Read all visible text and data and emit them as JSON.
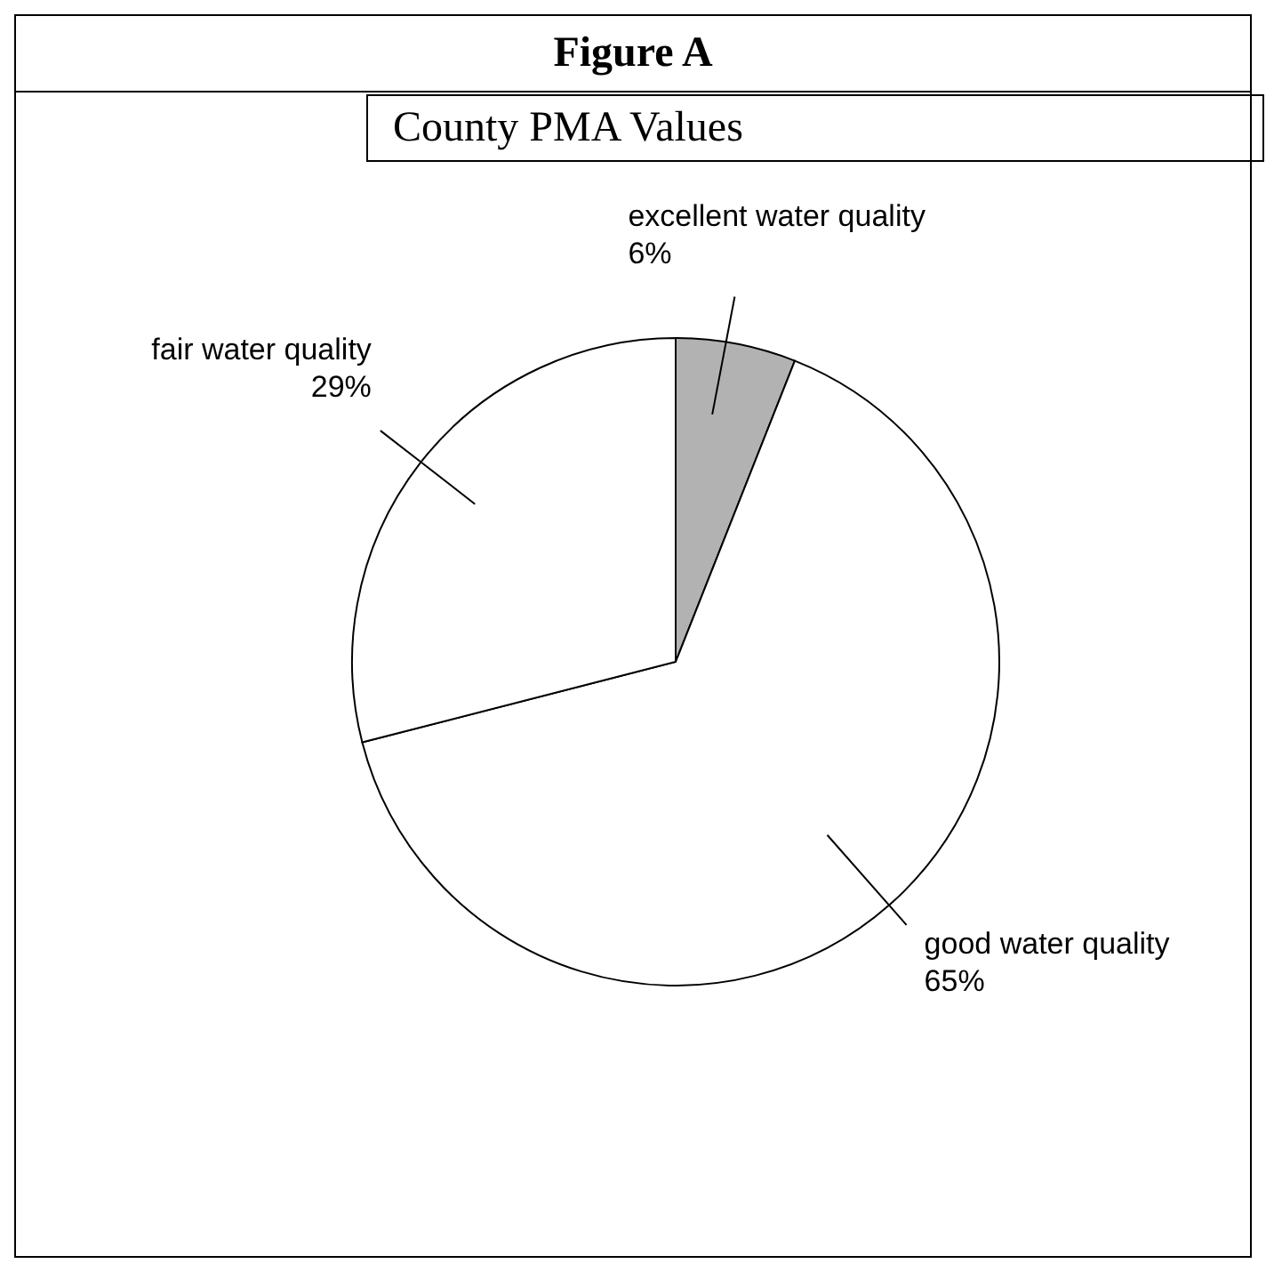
{
  "chart_data": {
    "type": "pie",
    "title": "Figure A",
    "subtitle": "County PMA Values",
    "categories": [
      "excellent water quality",
      "good water quality",
      "fair water quality"
    ],
    "values": [
      6,
      65,
      29
    ],
    "colors": [
      "#b2b2b2",
      "#ffffff",
      "#ffffff"
    ],
    "value_labels": [
      "6%",
      "65%",
      "29%"
    ],
    "legend": false
  }
}
